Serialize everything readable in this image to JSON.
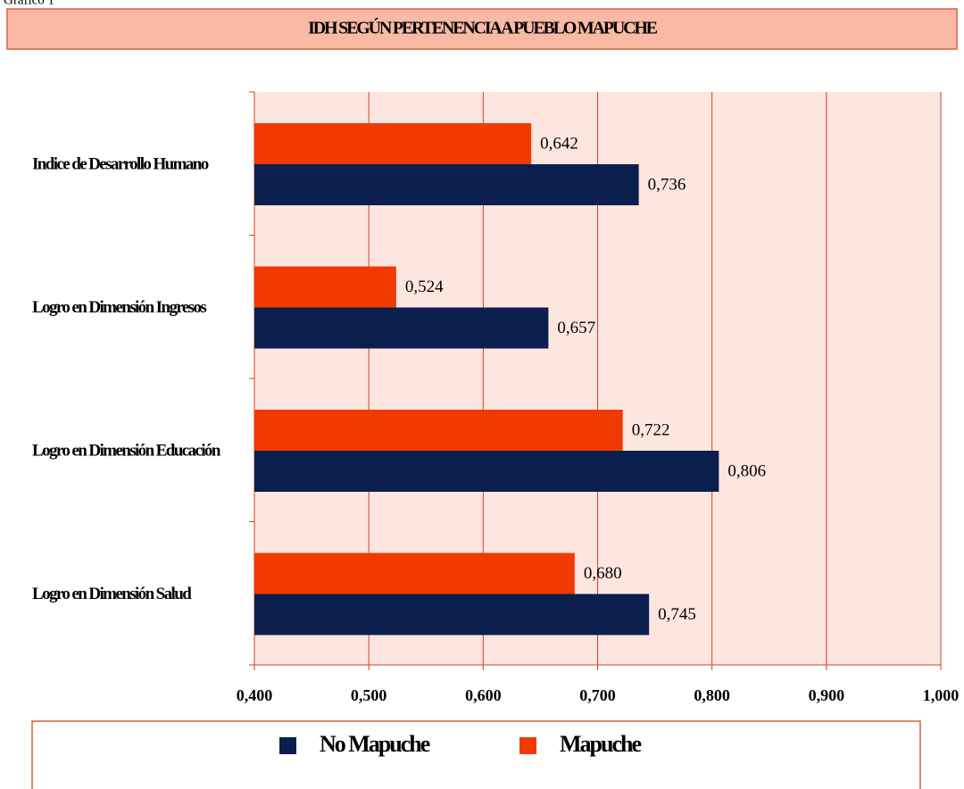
{
  "caption": "Gráfico 1",
  "chart_data": {
    "type": "bar",
    "orientation": "horizontal",
    "title": "IDH SEGÚN PERTENENCIA A PUEBLO MAPUCHE",
    "categories": [
      "Indice de Desarrollo Humano",
      "Logro en Dimensión Ingresos",
      "Logro en Dimensión Educación",
      "Logro en Dimensión Salud"
    ],
    "series": [
      {
        "name": "No Mapuche",
        "color": "#0b1f4f",
        "values": [
          0.736,
          0.657,
          0.806,
          0.745
        ],
        "value_labels": [
          "0,736",
          "0,657",
          "0,806",
          "0,745"
        ]
      },
      {
        "name": "Mapuche",
        "color": "#f23a00",
        "values": [
          0.642,
          0.524,
          0.722,
          0.68
        ],
        "value_labels": [
          "0,642",
          "0,524",
          "0,722",
          "0,680"
        ]
      }
    ],
    "xlim": [
      0.4,
      1.0
    ],
    "xticks": [
      {
        "value": 0.4,
        "label": "0,400"
      },
      {
        "value": 0.5,
        "label": "0,500"
      },
      {
        "value": 0.6,
        "label": "0,600"
      },
      {
        "value": 0.7,
        "label": "0,700"
      },
      {
        "value": 0.8,
        "label": "0,800"
      },
      {
        "value": 0.9,
        "label": "0,900"
      },
      {
        "value": 1.0,
        "label": "1,000"
      }
    ],
    "grid": true,
    "legend": "bottom"
  }
}
